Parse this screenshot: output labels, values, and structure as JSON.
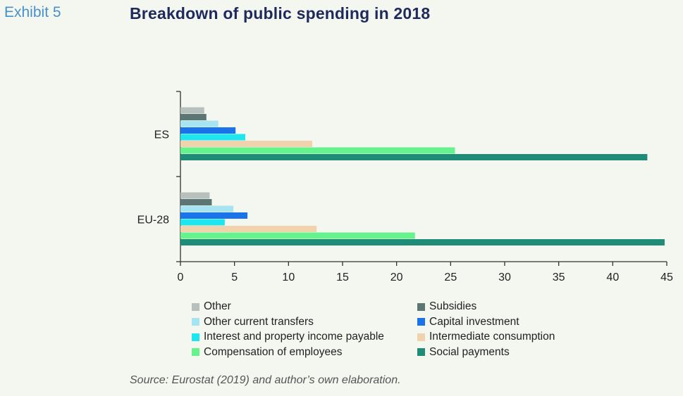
{
  "header": {
    "exhibit": "Exhibit 5",
    "title": "Breakdown of public spending in 2018"
  },
  "source": "Source: Eurostat (2019) and author’s own elaboration.",
  "chart_data": {
    "type": "bar",
    "orientation": "horizontal",
    "title": "Breakdown of public spending in 2018",
    "xlim": [
      0,
      45
    ],
    "xticks": [
      0,
      5,
      10,
      15,
      20,
      25,
      30,
      35,
      40,
      45
    ],
    "grid": false,
    "legend_position": "bottom",
    "categories": [
      "ES",
      "EU-28"
    ],
    "series": [
      {
        "name": "Other",
        "color": "#b7c0bd",
        "values": [
          2.2,
          2.7
        ]
      },
      {
        "name": "Subsidies",
        "color": "#5b7673",
        "values": [
          2.4,
          2.9
        ]
      },
      {
        "name": "Other current transfers",
        "color": "#a6e4f2",
        "values": [
          3.5,
          4.9
        ]
      },
      {
        "name": "Capital investment",
        "color": "#1a73e8",
        "values": [
          5.1,
          6.2
        ]
      },
      {
        "name": "Interest and property income payable",
        "color": "#1ee6ee",
        "values": [
          6.0,
          4.1
        ]
      },
      {
        "name": "Intermediate consumption",
        "color": "#f0d2ac",
        "values": [
          12.2,
          12.6
        ]
      },
      {
        "name": "Compensation of employees",
        "color": "#66f28d",
        "values": [
          25.4,
          21.7
        ]
      },
      {
        "name": "Social payments",
        "color": "#1e8c76",
        "values": [
          43.2,
          44.8
        ]
      }
    ]
  }
}
